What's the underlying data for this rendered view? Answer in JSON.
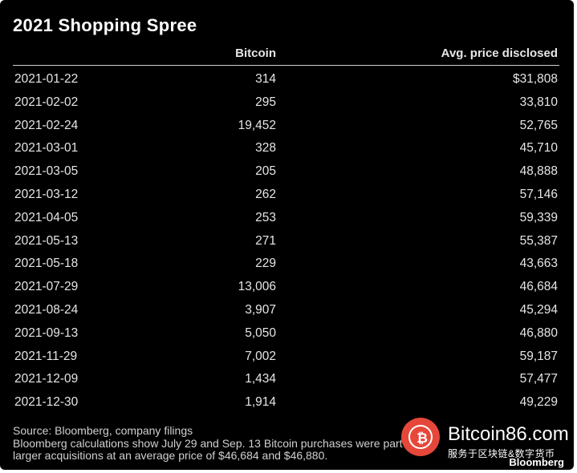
{
  "chart_data": {
    "type": "table",
    "title": "2021 Shopping Spree",
    "columns": [
      "",
      "Bitcoin",
      "Avg. price disclosed"
    ],
    "rows": [
      {
        "date": "2021-01-22",
        "bitcoin": "314",
        "price": "$31,808"
      },
      {
        "date": "2021-02-02",
        "bitcoin": "295",
        "price": "33,810"
      },
      {
        "date": "2021-02-24",
        "bitcoin": "19,452",
        "price": "52,765"
      },
      {
        "date": "2021-03-01",
        "bitcoin": "328",
        "price": "45,710"
      },
      {
        "date": "2021-03-05",
        "bitcoin": "205",
        "price": "48,888"
      },
      {
        "date": "2021-03-12",
        "bitcoin": "262",
        "price": "57,146"
      },
      {
        "date": "2021-04-05",
        "bitcoin": "253",
        "price": "59,339"
      },
      {
        "date": "2021-05-13",
        "bitcoin": "271",
        "price": "55,387"
      },
      {
        "date": "2021-05-18",
        "bitcoin": "229",
        "price": "43,663"
      },
      {
        "date": "2021-07-29",
        "bitcoin": "13,006",
        "price": "46,684"
      },
      {
        "date": "2021-08-24",
        "bitcoin": "3,907",
        "price": "45,294"
      },
      {
        "date": "2021-09-13",
        "bitcoin": "5,050",
        "price": "46,880"
      },
      {
        "date": "2021-11-29",
        "bitcoin": "7,002",
        "price": "59,187"
      },
      {
        "date": "2021-12-09",
        "bitcoin": "1,434",
        "price": "57,477"
      },
      {
        "date": "2021-12-30",
        "bitcoin": "1,914",
        "price": "49,229"
      }
    ],
    "source": "Source: Bloomberg, company filings",
    "note_line1": "Bloomberg calculations show July 29 and Sep. 13 Bitcoin purchases were part of",
    "note_line2": "larger acquisitions at an average price of $46,684 and $46,880."
  },
  "watermark": {
    "icon": "bitcoin-icon",
    "site": "Bitcoin86.com",
    "subtitle": "服务于区块链&数字货币",
    "color": "#e5483a"
  },
  "brand": "Bloomberg",
  "colors": {
    "background": "#000000",
    "text": "#e6e6e6",
    "title": "#ffffff"
  }
}
